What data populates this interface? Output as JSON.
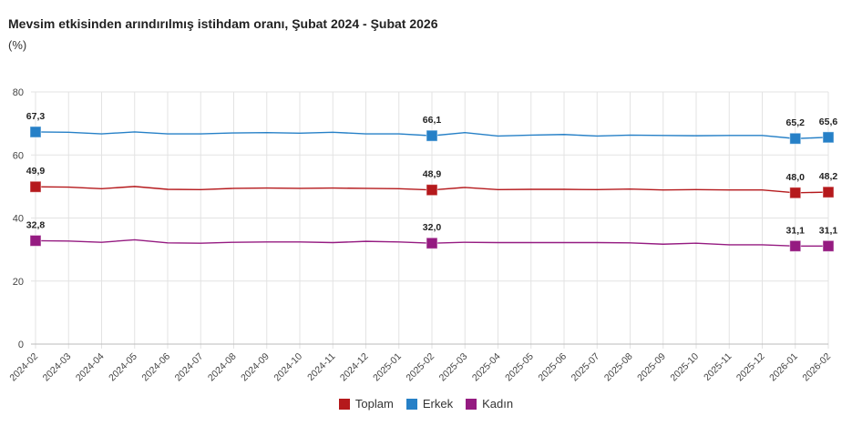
{
  "chart_data": {
    "type": "line",
    "title": "Mevsim etkisinden arındırılmış istihdam oranı, Şubat 2024 - Şubat 2026",
    "ylabel": "(%)",
    "ylim": [
      0,
      80
    ],
    "yticks": [
      "0",
      "20",
      "40",
      "60",
      "80"
    ],
    "ytick_values": [
      0,
      20,
      40,
      60,
      80
    ],
    "grid": true,
    "legend_position": "bottom",
    "categories": [
      "2024-02",
      "2024-03",
      "2024-04",
      "2024-05",
      "2024-06",
      "2024-07",
      "2024-08",
      "2024-09",
      "2024-10",
      "2024-11",
      "2024-12",
      "2025-01",
      "2025-02",
      "2025-03",
      "2025-04",
      "2025-05",
      "2025-06",
      "2025-07",
      "2025-08",
      "2025-09",
      "2025-10",
      "2025-11",
      "2025-12",
      "2026-01",
      "2026-02"
    ],
    "labeled_indices": [
      0,
      12,
      23,
      24
    ],
    "series": [
      {
        "name": "Toplam",
        "color": "#b5191c",
        "values": [
          49.9,
          49.8,
          49.3,
          50.0,
          49.1,
          49.0,
          49.4,
          49.5,
          49.4,
          49.5,
          49.4,
          49.3,
          48.9,
          49.7,
          49.0,
          49.1,
          49.1,
          49.0,
          49.2,
          48.9,
          49.0,
          48.9,
          48.9,
          48.0,
          48.2
        ],
        "labels": [
          "49,9",
          "48,9",
          "48,0",
          "48,2"
        ]
      },
      {
        "name": "Erkek",
        "color": "#2680c7",
        "values": [
          67.3,
          67.2,
          66.7,
          67.3,
          66.7,
          66.7,
          67.0,
          67.1,
          66.9,
          67.2,
          66.7,
          66.7,
          66.1,
          67.1,
          66.0,
          66.3,
          66.5,
          66.0,
          66.3,
          66.2,
          66.1,
          66.2,
          66.2,
          65.2,
          65.6
        ],
        "labels": [
          "67,3",
          "66,1",
          "65,2",
          "65,6"
        ]
      },
      {
        "name": "Kadın",
        "color": "#951b81",
        "values": [
          32.8,
          32.7,
          32.3,
          33.1,
          32.1,
          32.0,
          32.3,
          32.4,
          32.4,
          32.2,
          32.6,
          32.4,
          32.0,
          32.3,
          32.2,
          32.2,
          32.2,
          32.2,
          32.1,
          31.7,
          32.0,
          31.5,
          31.5,
          31.1,
          31.1
        ],
        "labels": [
          "32,8",
          "32,0",
          "31,1",
          "31,1"
        ]
      }
    ]
  }
}
